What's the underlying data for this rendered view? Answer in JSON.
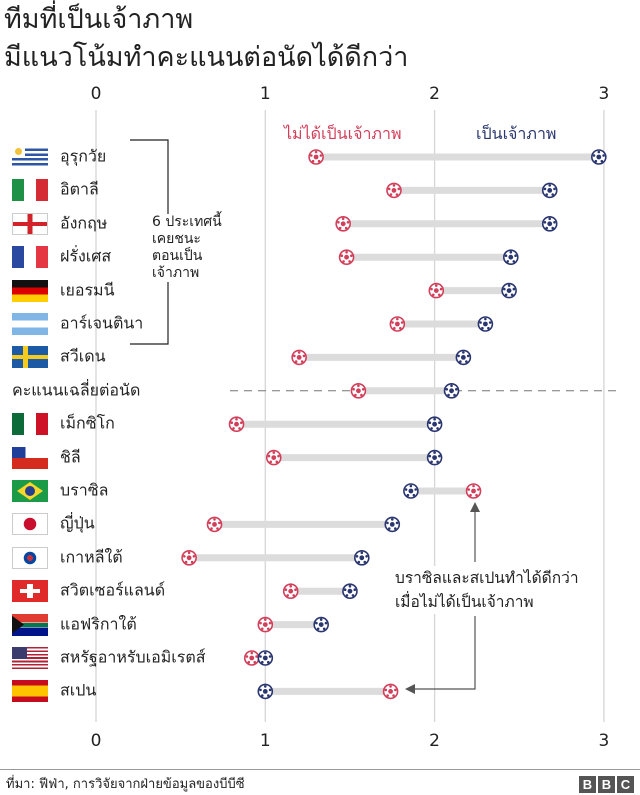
{
  "title": [
    "ทีมที่เป็นเจ้าภาพ",
    "มีแนวโน้มทำคะแนนต่อนัดได้ดีกว่า"
  ],
  "source": "ที่มา: ฟีฟ่า, การวิจัยจากฝ่ายข้อมูลของบีบีซี",
  "logo": [
    "B",
    "B",
    "C"
  ],
  "bracket_note": [
    "6 ประเทศนี้",
    "เคยชนะ",
    "ตอนเป็น",
    "เจ้าภาพ"
  ],
  "annotation": [
    "บราซิลและสเปนทำได้ดีกว่า",
    "เมื่อไม่ได้เป็นเจ้าภาพ"
  ],
  "colors": {
    "not_host": "#d23f5a",
    "host": "#2a3670",
    "bar": "#dcdcdc"
  },
  "chart_data": {
    "type": "dumbbell",
    "title": "ทีมที่เป็นเจ้าภาพ มีแนวโน้มทำคะแนนต่อนัดได้ดีกว่า",
    "xlabel": "คะแนนต่อนัด",
    "xlim": [
      0,
      3
    ],
    "ticks": [
      "0",
      "1",
      "2",
      "3"
    ],
    "tick_values": [
      0,
      1,
      2,
      3
    ],
    "legend": {
      "not_host": "ไม่ได้เป็นเจ้าภาพ",
      "host": "เป็นเจ้าภาพ"
    },
    "rows": [
      {
        "name": "อุรุกวัย",
        "flag": "uruguay",
        "not_host": 1.3,
        "host": 2.97
      },
      {
        "name": "อิตาลี",
        "flag": "italy",
        "not_host": 1.76,
        "host": 2.68
      },
      {
        "name": "อังกฤษ",
        "flag": "england",
        "not_host": 1.46,
        "host": 2.68
      },
      {
        "name": "ฝรั่งเศส",
        "flag": "france",
        "not_host": 1.48,
        "host": 2.45
      },
      {
        "name": "เยอรมนี",
        "flag": "germany",
        "not_host": 2.01,
        "host": 2.44
      },
      {
        "name": "อาร์เจนตินา",
        "flag": "argentina",
        "not_host": 1.78,
        "host": 2.3
      },
      {
        "name": "สวีเดน",
        "flag": "sweden",
        "not_host": 1.2,
        "host": 2.17
      },
      {
        "name": "คะแนนเฉลี่ยต่อนัด",
        "flag": "",
        "not_host": 1.55,
        "host": 2.1,
        "average": true
      },
      {
        "name": "เม็กซิโก",
        "flag": "mexico",
        "not_host": 0.83,
        "host": 2.0
      },
      {
        "name": "ชิลี",
        "flag": "chile",
        "not_host": 1.05,
        "host": 2.0
      },
      {
        "name": "บราซิล",
        "flag": "brazil",
        "not_host": 2.23,
        "host": 1.86
      },
      {
        "name": "ญี่ปุ่น",
        "flag": "japan",
        "not_host": 0.7,
        "host": 1.75
      },
      {
        "name": "เกาหลีใต้",
        "flag": "korea",
        "not_host": 0.55,
        "host": 1.57
      },
      {
        "name": "สวิตเซอร์แลนด์",
        "flag": "switzerland",
        "not_host": 1.15,
        "host": 1.5
      },
      {
        "name": "แอฟริกาใต้",
        "flag": "south-africa",
        "not_host": 1.0,
        "host": 1.33
      },
      {
        "name": "สหรัฐอาหรับเอมิเรตส์",
        "flag": "usa",
        "not_host": 0.92,
        "host": 1.0
      },
      {
        "name": "สเปน",
        "flag": "spain",
        "not_host": 1.74,
        "host": 1.0
      }
    ]
  }
}
